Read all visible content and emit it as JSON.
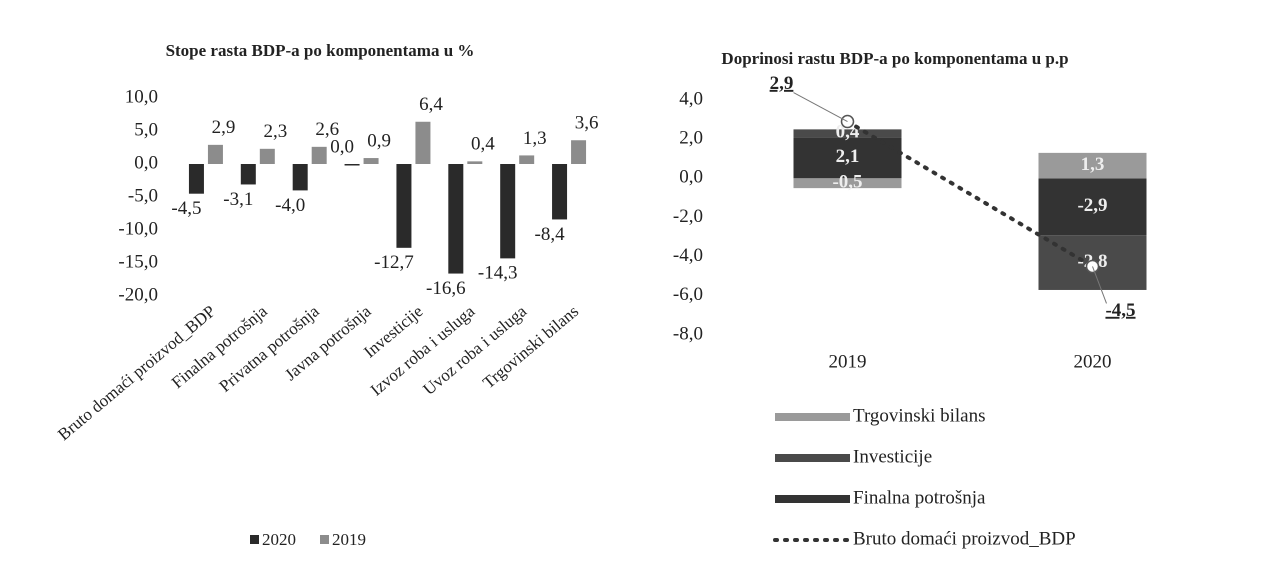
{
  "chart_data": [
    {
      "type": "bar",
      "title": "Stope rasta BDP-a po komponentama u %",
      "categories": [
        "Bruto domaći proizvod_BDP",
        "Finalna potrošnja",
        "Privatna potrošnja",
        "Javna potrošnja",
        "Investicije",
        "Izvoz roba i usluga",
        "Uvoz roba i usluga",
        "Trgovinski bilans"
      ],
      "series": [
        {
          "name": "2020",
          "color": "#2a2a2a",
          "values": [
            -4.5,
            -3.1,
            -4.0,
            0.0,
            -12.7,
            -16.6,
            -14.3,
            -8.4
          ],
          "value_labels": [
            "-4,5",
            "-3,1",
            "-4,0",
            "0,0",
            "-12,7",
            "-16,6",
            "-14,3",
            "-8,4"
          ]
        },
        {
          "name": "2019",
          "color": "#8c8c8c",
          "values": [
            2.9,
            2.3,
            2.6,
            0.9,
            6.4,
            0.4,
            1.3,
            3.6
          ],
          "value_labels": [
            "2,9",
            "2,3",
            "2,6",
            "0,9",
            "6,4",
            "0,4",
            "1,3",
            "3,6"
          ]
        }
      ],
      "ylim": [
        -20,
        10
      ],
      "yticks": [
        {
          "value": -20,
          "label": "-20,0"
        },
        {
          "value": -15,
          "label": "-15,0"
        },
        {
          "value": -10,
          "label": "-10,0"
        },
        {
          "value": -5,
          "label": "-5,0"
        },
        {
          "value": 0,
          "label": "0,0"
        },
        {
          "value": 5,
          "label": "5,0"
        },
        {
          "value": 10,
          "label": "10,0"
        }
      ],
      "legend": "bottom"
    },
    {
      "type": "stacked_bar",
      "title": "Doprinosi rastu BDP-a po komponentama u p.p",
      "categories": [
        "2019",
        "2020"
      ],
      "series": [
        {
          "name": "Trgovinski bilans",
          "color": "#9a9a9a",
          "values": [
            -0.5,
            1.3
          ],
          "value_labels": [
            "-0,5",
            "1,3"
          ]
        },
        {
          "name": "Investicije",
          "color": "#4a4a4a",
          "values": [
            0.4,
            -2.8
          ],
          "value_labels": [
            "0,4",
            "-2,8"
          ]
        },
        {
          "name": "Finalna potrošnja",
          "color": "#333333",
          "values": [
            2.1,
            -2.9
          ],
          "value_labels": [
            "2,1",
            "-2,9"
          ]
        },
        {
          "name": "Bruto domaći proizvod_BDP",
          "kind": "line",
          "color": "#333333",
          "values": [
            2.9,
            -4.5
          ],
          "value_labels": [
            "2,9",
            "-4,5"
          ]
        }
      ],
      "ylim": [
        -8,
        4
      ],
      "yticks": [
        {
          "value": -8,
          "label": "-8,0"
        },
        {
          "value": -6,
          "label": "-6,0"
        },
        {
          "value": -4,
          "label": "-4,0"
        },
        {
          "value": -2,
          "label": "-2,0"
        },
        {
          "value": 0,
          "label": "0,0"
        },
        {
          "value": 2,
          "label": "2,0"
        },
        {
          "value": 4,
          "label": "4,0"
        }
      ],
      "legend": "bottom"
    }
  ]
}
